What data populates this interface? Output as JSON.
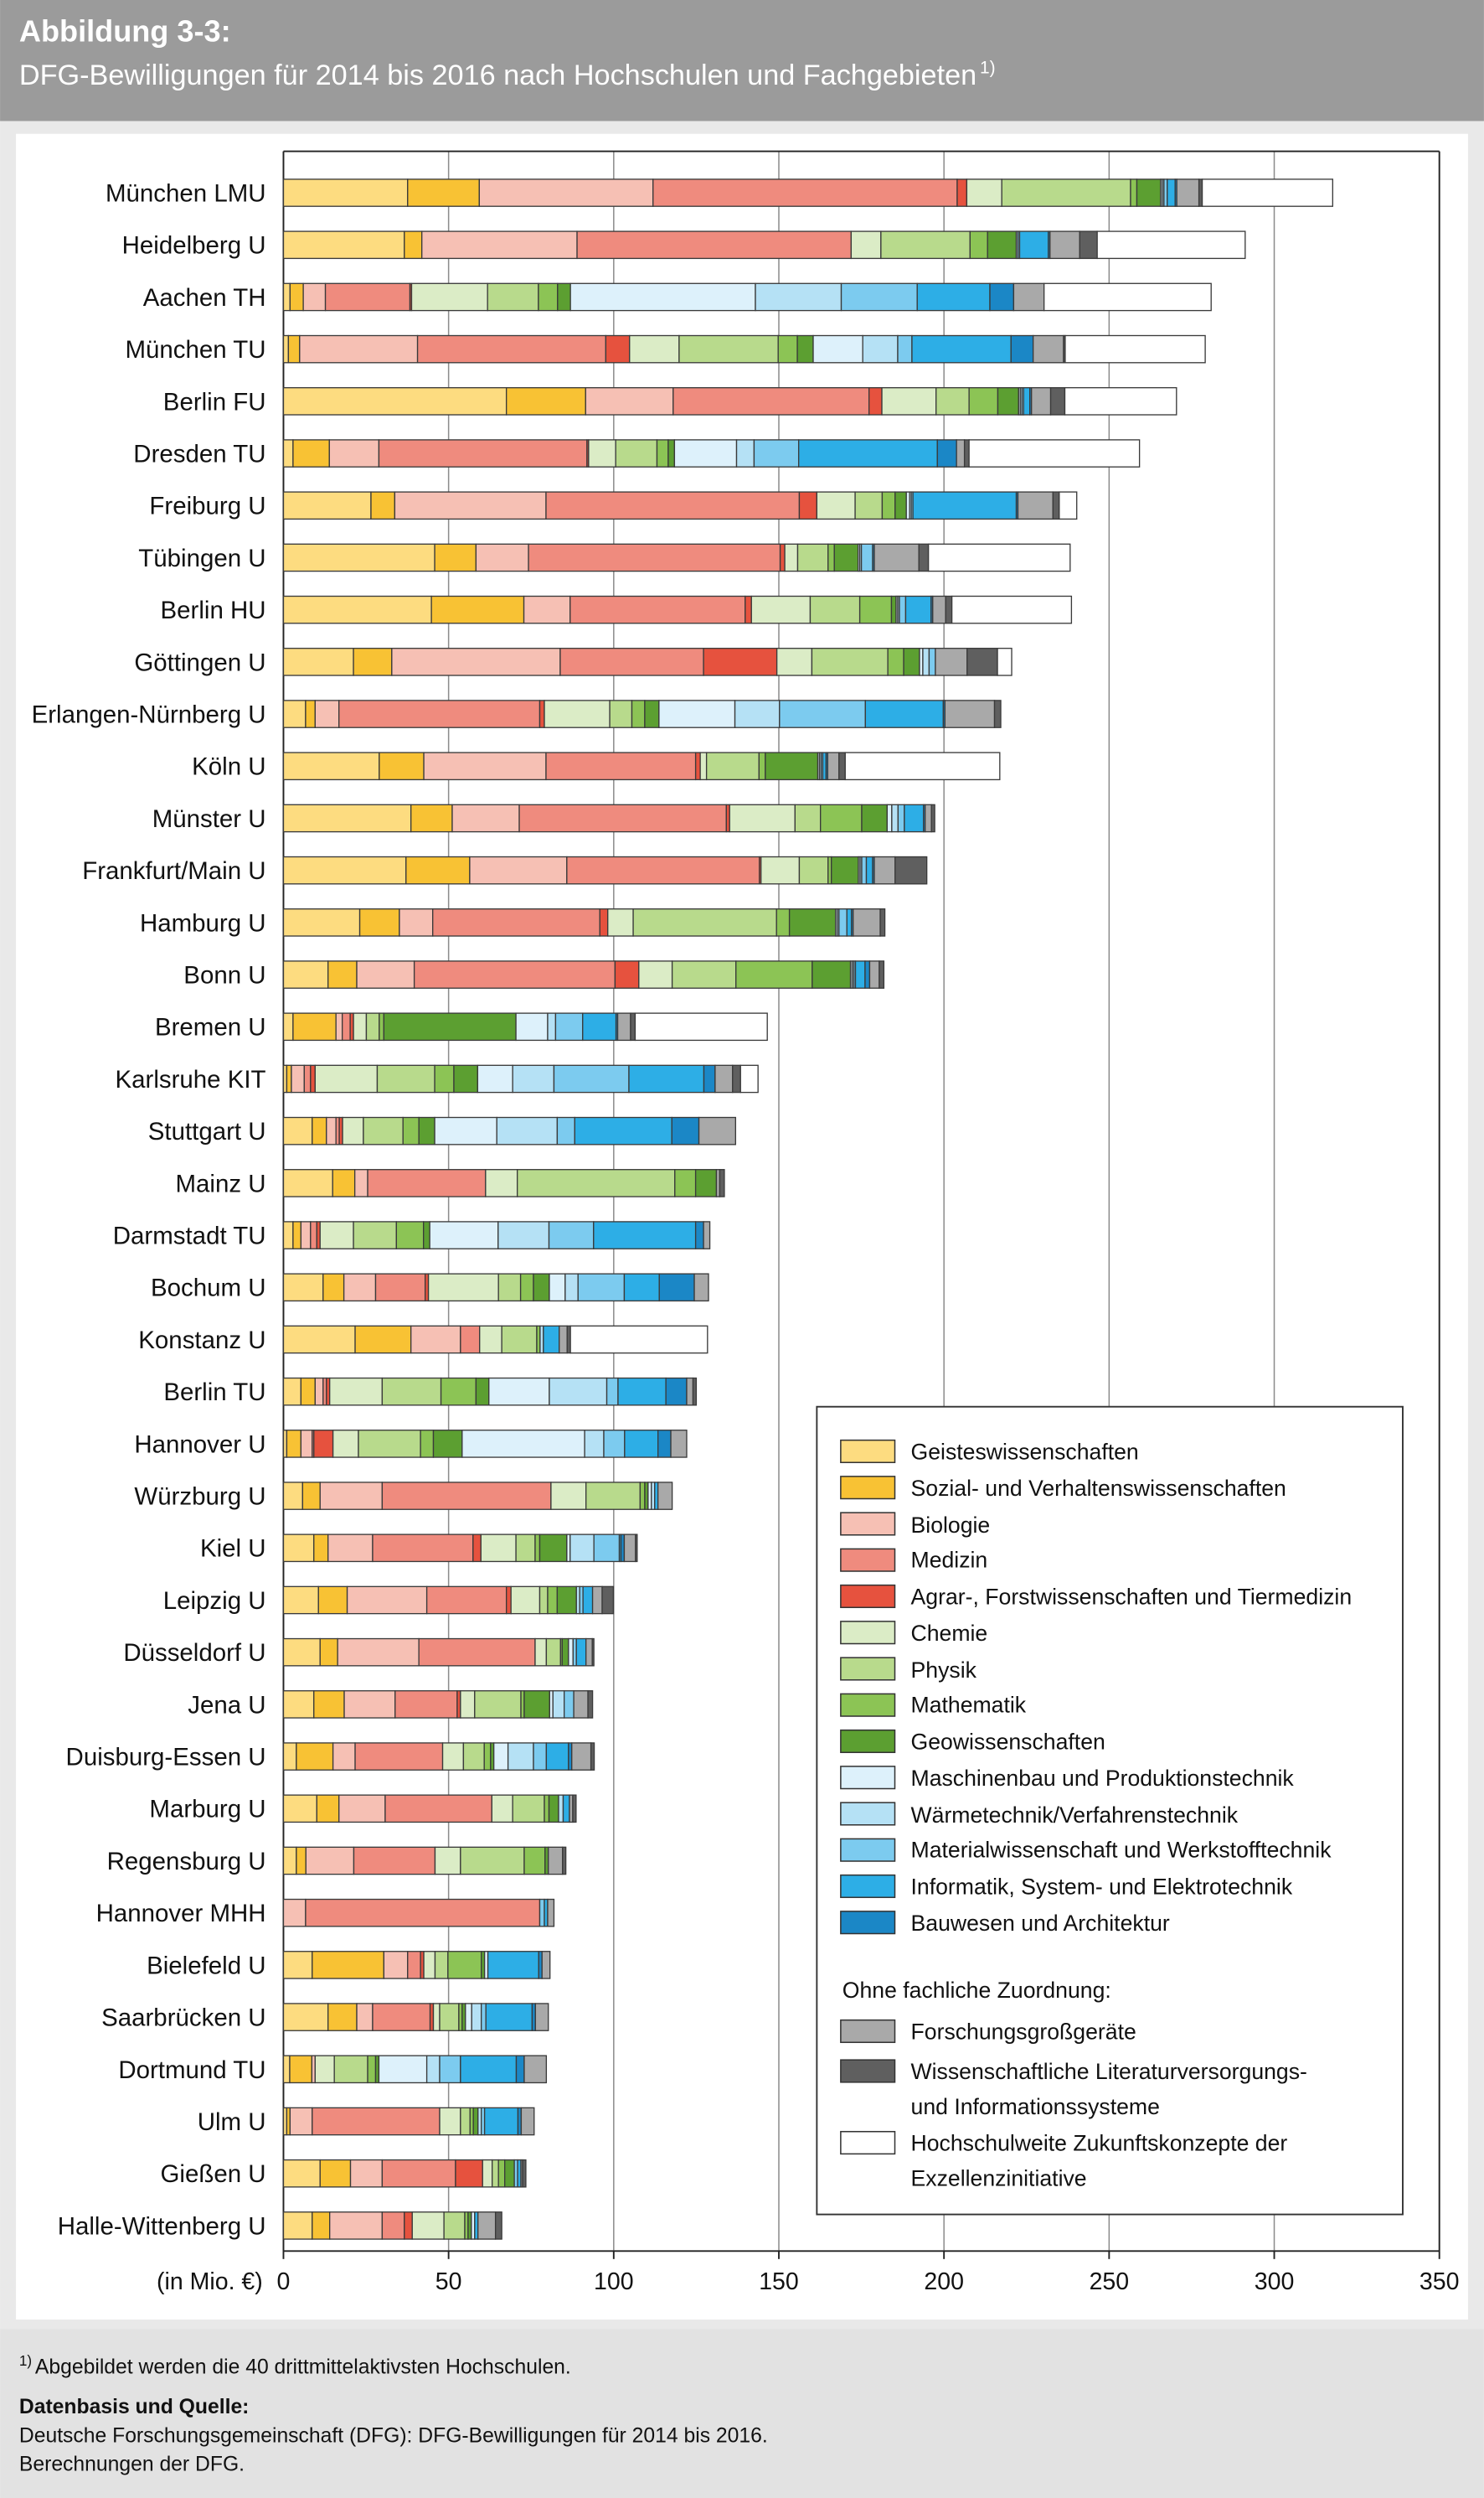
{
  "chart_data": {
    "type": "bar",
    "orientation": "horizontal",
    "stacked": true,
    "figure_label": "Abbildung 3-3:",
    "title": "DFG-Bewilligungen für 2014 bis 2016 nach Hochschulen und Fachgebieten",
    "title_note": "1)",
    "x_label": "(in Mio. €)",
    "xlim": [
      0,
      350
    ],
    "xticks": [
      0,
      50,
      100,
      150,
      200,
      250,
      300,
      350
    ],
    "grid": true,
    "legend_position": "lower right",
    "legend_group_label": "Ohne fachliche Zuordnung:",
    "footnote_marker": "1)",
    "footnote": "Abgebildet werden die 40 drittmittelaktivsten Hochschulen.",
    "source_heading": "Datenbasis und Quelle:",
    "source_lines": [
      "Deutsche Forschungsgemeinschaft (DFG): DFG-Bewilligungen für 2014 bis 2016.",
      "Berechnungen der DFG."
    ],
    "categories": [
      "München LMU",
      "Heidelberg U",
      "Aachen TH",
      "München TU",
      "Berlin FU",
      "Dresden TU",
      "Freiburg U",
      "Tübingen U",
      "Berlin HU",
      "Göttingen U",
      "Erlangen-Nürnberg U",
      "Köln U",
      "Münster U",
      "Frankfurt/Main U",
      "Hamburg U",
      "Bonn U",
      "Bremen U",
      "Karlsruhe KIT",
      "Stuttgart U",
      "Mainz U",
      "Darmstadt TU",
      "Bochum U",
      "Konstanz U",
      "Berlin TU",
      "Hannover U",
      "Würzburg U",
      "Kiel U",
      "Leipzig U",
      "Düsseldorf U",
      "Jena U",
      "Duisburg-Essen U",
      "Marburg U",
      "Regensburg U",
      "Hannover MHH",
      "Bielefeld U",
      "Saarbrücken U",
      "Dortmund TU",
      "Ulm U",
      "Gießen U",
      "Halle-Wittenberg U"
    ],
    "series": [
      {
        "name": "Geisteswissenschaften",
        "color": "#fddc80",
        "values": [
          37.6,
          36.6,
          2,
          1.5,
          67.5,
          2.9,
          26.5,
          45.8,
          44.8,
          21.2,
          6.7,
          29,
          38.6,
          37.1,
          23.1,
          13.5,
          2.9,
          1,
          8.7,
          14.9,
          2.9,
          12,
          21.7,
          5.3,
          1,
          5.8,
          9.2,
          10.6,
          11.1,
          9.2,
          3.9,
          10.1,
          3.9,
          0,
          8.7,
          13.5,
          1.9,
          1,
          11.1,
          8.7
        ]
      },
      {
        "name": "Sozial- und Verhaltenswissenschaften",
        "color": "#f8c234",
        "values": [
          21.7,
          5.3,
          4,
          3.4,
          24,
          11,
          7.2,
          12.5,
          28,
          11.6,
          2.9,
          13.5,
          12.5,
          19.3,
          12,
          8.7,
          13,
          1.4,
          4.3,
          6.7,
          2.4,
          6.3,
          16.9,
          4.3,
          4.3,
          5.3,
          4.3,
          8.7,
          5.3,
          9.2,
          11.1,
          6.7,
          2.9,
          0,
          21.7,
          8.7,
          6.7,
          1,
          9.2,
          5.3
        ]
      },
      {
        "name": "Biologie",
        "color": "#f6c0b4",
        "values": [
          52.6,
          47,
          6.7,
          35.7,
          26.5,
          15,
          45.8,
          15.9,
          14,
          51,
          7.2,
          37,
          20.3,
          29.4,
          10.1,
          17.4,
          1.9,
          3.9,
          2.9,
          3.9,
          2.9,
          9.6,
          15,
          2.4,
          3.4,
          18.8,
          13.5,
          24.1,
          24.6,
          15.4,
          6.7,
          14,
          14.5,
          6.7,
          7.2,
          4.8,
          1,
          6.7,
          9.6,
          15.9
        ]
      },
      {
        "name": "Medizin",
        "color": "#ef8b7e",
        "values": [
          92.1,
          83,
          25.6,
          57,
          59.3,
          63,
          76.7,
          76.2,
          53,
          43.4,
          60.8,
          45.3,
          62.7,
          58.3,
          50.6,
          60.8,
          2.4,
          1.9,
          1,
          35.7,
          1.9,
          15,
          5.8,
          1,
          0.5,
          51.1,
          30.4,
          24.1,
          35.2,
          18.8,
          26.5,
          32.3,
          24.6,
          70.9,
          3.9,
          17.4,
          0,
          38.6,
          22.2,
          6.7
        ]
      },
      {
        "name": "Agrar-, Forstwissenschaften und Tiermedizin",
        "color": "#e6523e",
        "values": [
          2.9,
          0,
          0.5,
          7.2,
          3.9,
          0.5,
          5.3,
          1.4,
          1.9,
          22.2,
          1.4,
          1.4,
          1,
          0.5,
          2.4,
          7.2,
          1,
          1.4,
          1,
          0,
          1,
          1,
          0,
          1,
          5.8,
          0,
          2.4,
          1.4,
          0,
          1,
          0,
          0,
          0,
          0,
          1,
          1,
          0,
          0,
          8.2,
          2.4
        ]
      },
      {
        "name": "Chemie",
        "color": "#dbecc6",
        "values": [
          10.6,
          9,
          23,
          15,
          16.4,
          8.2,
          11.6,
          3.9,
          17.8,
          10.6,
          19.8,
          1.9,
          19.8,
          11.6,
          7.7,
          10.1,
          3.9,
          18.8,
          6.3,
          9.6,
          10.1,
          21.2,
          6.7,
          15.9,
          7.7,
          10.6,
          10.6,
          8.7,
          3.4,
          4.3,
          6.3,
          6.3,
          7.7,
          0,
          3.4,
          1.9,
          5.8,
          6.3,
          2.9,
          9.6
        ]
      },
      {
        "name": "Physik",
        "color": "#b8da8c",
        "values": [
          39,
          27,
          15.4,
          30,
          10,
          12.5,
          8.2,
          9.2,
          15,
          23,
          6.7,
          15.9,
          7.7,
          8.7,
          43.4,
          19.3,
          3.9,
          17.4,
          12,
          47.7,
          13,
          6.7,
          10.6,
          17.8,
          18.8,
          16.4,
          5.8,
          2.4,
          4.3,
          14,
          6.3,
          9.6,
          19.3,
          0,
          3.9,
          5.8,
          10.1,
          2.9,
          1.9,
          6.3
        ]
      },
      {
        "name": "Mathematik",
        "color": "#8cc455",
        "values": [
          1.9,
          5.3,
          5.8,
          5.8,
          8.7,
          3.4,
          3.9,
          1.9,
          9.6,
          4.8,
          3.9,
          1.9,
          12.5,
          1,
          3.9,
          23.1,
          1.4,
          5.8,
          4.8,
          6.3,
          8.2,
          3.9,
          1,
          10.6,
          3.9,
          1.4,
          1.4,
          2.9,
          0.5,
          1,
          1.9,
          1.4,
          6.3,
          0,
          10.1,
          1,
          2.4,
          1,
          1.9,
          1
        ]
      },
      {
        "name": "Geowissenschaften",
        "color": "#5c9f31",
        "values": [
          7.2,
          8.7,
          3.9,
          4.8,
          6.3,
          1.9,
          3.4,
          7.2,
          1.4,
          4.8,
          4.3,
          15.9,
          7.7,
          8.2,
          14,
          11.6,
          40,
          7.2,
          4.8,
          6.3,
          1.9,
          4.8,
          0,
          3.9,
          8.7,
          1,
          8.2,
          5.8,
          1.9,
          7.7,
          1,
          2.9,
          1,
          0,
          1,
          1,
          1,
          1.4,
          2.9,
          1
        ]
      },
      {
        "name": "Maschinenbau und Produktionstechnik",
        "color": "#ddf1fb",
        "values": [
          0.5,
          0,
          56,
          15,
          0.5,
          18.8,
          1,
          0.5,
          0.5,
          1,
          23,
          0.5,
          1.4,
          0.5,
          0.5,
          0.5,
          9.6,
          10.6,
          18.8,
          0,
          20.7,
          4.8,
          0,
          18.3,
          37.1,
          1,
          1,
          0,
          1.4,
          1,
          4.3,
          0,
          0,
          0,
          1,
          1.9,
          14.5,
          0,
          0,
          1
        ]
      },
      {
        "name": "Wärmetechnik/Verfahrenstechnik",
        "color": "#b5e1f5",
        "values": [
          0.5,
          0.5,
          26,
          10.6,
          0.5,
          5.3,
          0.5,
          0.5,
          0.5,
          1.9,
          13.5,
          0.5,
          1.9,
          0.5,
          0.5,
          0.5,
          2.4,
          12.5,
          18.3,
          0,
          15.4,
          3.9,
          1,
          17.4,
          5.8,
          1,
          7.2,
          1,
          0,
          3.4,
          7.7,
          1.4,
          0,
          0,
          0,
          2.9,
          3.9,
          1,
          0,
          0
        ]
      },
      {
        "name": "Materialwissenschaft und Werkstofftechnik",
        "color": "#7ccbef",
        "values": [
          1,
          0.5,
          23,
          4.3,
          0.5,
          13.5,
          0.5,
          3.4,
          1.9,
          1.9,
          26,
          0.5,
          1.9,
          1.4,
          2.4,
          0.5,
          8.2,
          22.7,
          5.3,
          0,
          13.5,
          14,
          0,
          3.4,
          6.3,
          0,
          7.7,
          1,
          1,
          2.9,
          3.9,
          0,
          0,
          1.4,
          0,
          1.4,
          6.3,
          1,
          1,
          0
        ]
      },
      {
        "name": "Informatik, System- und Elektrotechnik",
        "color": "#2daee6",
        "values": [
          2.4,
          8.7,
          22,
          30,
          1.9,
          42,
          31.3,
          0,
          7.7,
          0,
          23.6,
          1,
          5.8,
          1.9,
          1.4,
          2.9,
          10.1,
          22.7,
          29.4,
          0,
          30.9,
          10.6,
          4.8,
          14.5,
          10.1,
          1,
          0.5,
          2.9,
          2.9,
          0,
          6.7,
          1.9,
          0,
          1,
          15.4,
          14,
          16.9,
          10.1,
          1,
          1
        ]
      },
      {
        "name": "Bauwesen und Architektur",
        "color": "#1b87c6",
        "values": [
          0.5,
          0.5,
          7.2,
          6.7,
          0.5,
          5.8,
          0.5,
          0.5,
          0.5,
          0,
          0.5,
          0.5,
          0.5,
          0.5,
          0.5,
          1.4,
          0.5,
          3.4,
          8.2,
          0,
          2.4,
          10.6,
          0,
          6.3,
          3.9,
          0,
          1,
          0,
          0,
          0,
          1,
          0,
          0,
          0,
          1,
          1,
          2.4,
          1,
          0,
          0
        ]
      },
      {
        "name": "Forschungsgroßgeräte",
        "color": "#a9a9a9",
        "values": [
          6.7,
          9,
          9.2,
          9.2,
          5.8,
          2.4,
          10.6,
          13.5,
          3.9,
          9.6,
          15,
          3.4,
          1.9,
          6.3,
          8.2,
          2.9,
          3.9,
          5.3,
          11.1,
          1,
          1.9,
          4.3,
          2.4,
          1.9,
          4.8,
          4.3,
          3.4,
          2.9,
          1.9,
          4.3,
          5.8,
          1,
          4.3,
          1.9,
          2.4,
          3.9,
          6.7,
          3.9,
          0.5,
          5.3
        ]
      },
      {
        "name": "Wissenschaftliche Literaturversorgungs- und Informationssysteme",
        "color": "#5f5f5f",
        "values": [
          1,
          5.3,
          0,
          0.5,
          4.3,
          1.4,
          1.9,
          2.9,
          1.9,
          9.2,
          1.9,
          1.9,
          1,
          9.6,
          1.4,
          1.4,
          1.4,
          2.4,
          0,
          1.4,
          0,
          0,
          1,
          1,
          0,
          0,
          0.5,
          3.4,
          0.5,
          1.4,
          1,
          1,
          1,
          0,
          0,
          0,
          0,
          0,
          1,
          1.9
        ]
      },
      {
        "name": "Hochschulweite Zukunftskonzepte der Exzellenzinitiative",
        "color": "#ffffff",
        "values": [
          39.5,
          44.8,
          50.6,
          42.4,
          33.8,
          51.6,
          5.3,
          42.9,
          36.2,
          4.3,
          0,
          46.8,
          0,
          0,
          0,
          0,
          40,
          5.3,
          0,
          0,
          0,
          0,
          41.5,
          0,
          0,
          0,
          0,
          0,
          0,
          0,
          0,
          0,
          0,
          0,
          0,
          0,
          0,
          0,
          0,
          0
        ]
      }
    ]
  }
}
